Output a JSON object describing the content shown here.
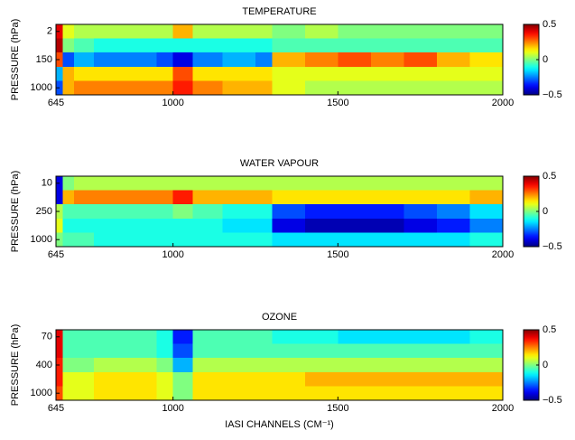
{
  "chart_data": [
    {
      "type": "heatmap",
      "title": "TEMPERATURE",
      "ylabel": "PRESSURE (hPa)",
      "colormap": "jet",
      "bins": [
        645,
        665,
        700,
        760,
        850,
        950,
        1000,
        1060,
        1150,
        1250,
        1300,
        1400,
        1500,
        1600,
        1700,
        1800,
        1900,
        2000
      ],
      "xlim": [
        645,
        2000
      ],
      "xticks": [
        645,
        1000,
        1500,
        2000
      ],
      "y_categories": [
        "2",
        null,
        "150",
        null,
        "1000"
      ],
      "clim": [
        -0.5,
        0.5
      ],
      "cticks": [
        {
          "value": -0.5,
          "label": "−0.5"
        },
        0,
        0.5
      ],
      "values": [
        [
          0.4,
          0.1,
          0.05,
          0.05,
          0.05,
          0.05,
          0.2,
          0.05,
          0.05,
          0.05,
          0.0,
          0.05,
          0.0,
          0.0,
          0.0,
          0.0,
          0.0
        ],
        [
          0.45,
          0.0,
          -0.05,
          -0.1,
          -0.1,
          -0.1,
          -0.1,
          -0.1,
          -0.1,
          -0.1,
          -0.05,
          -0.05,
          -0.05,
          -0.05,
          -0.05,
          -0.05,
          -0.05
        ],
        [
          0.3,
          -0.3,
          -0.2,
          -0.25,
          -0.25,
          -0.3,
          -0.4,
          -0.25,
          -0.2,
          -0.25,
          0.2,
          0.25,
          0.3,
          0.25,
          0.3,
          0.2,
          0.15
        ],
        [
          -0.2,
          0.2,
          0.15,
          0.15,
          0.15,
          0.15,
          0.3,
          0.15,
          0.15,
          0.15,
          0.1,
          0.1,
          0.1,
          0.1,
          0.1,
          0.1,
          0.1
        ],
        [
          -0.3,
          0.2,
          0.25,
          0.25,
          0.25,
          0.25,
          0.35,
          0.25,
          0.2,
          0.2,
          0.1,
          0.05,
          0.05,
          0.05,
          0.05,
          0.05,
          0.05
        ]
      ]
    },
    {
      "type": "heatmap",
      "title": "WATER VAPOUR",
      "ylabel": "PRESSURE (hPa)",
      "colormap": "jet",
      "bins": [
        645,
        665,
        700,
        760,
        850,
        950,
        1000,
        1060,
        1150,
        1250,
        1300,
        1400,
        1500,
        1600,
        1700,
        1800,
        1900,
        2000
      ],
      "xlim": [
        645,
        2000
      ],
      "xticks": [
        645,
        1000,
        1500,
        2000
      ],
      "y_categories": [
        "10",
        null,
        "250",
        null,
        "1000"
      ],
      "clim": [
        -0.5,
        0.5
      ],
      "cticks": [
        {
          "value": -0.5,
          "label": "−0.5"
        },
        0,
        0.5
      ],
      "values": [
        [
          -0.4,
          0.0,
          0.05,
          0.05,
          0.05,
          0.05,
          0.05,
          0.05,
          0.05,
          0.05,
          0.05,
          0.05,
          0.05,
          0.05,
          0.05,
          0.05,
          0.05
        ],
        [
          -0.4,
          0.2,
          0.25,
          0.25,
          0.25,
          0.25,
          0.35,
          0.2,
          0.2,
          0.2,
          0.15,
          0.15,
          0.15,
          0.15,
          0.15,
          0.15,
          0.2
        ],
        [
          0.05,
          -0.05,
          -0.05,
          -0.05,
          -0.05,
          -0.05,
          0.0,
          -0.05,
          -0.1,
          -0.1,
          -0.3,
          -0.35,
          -0.35,
          -0.35,
          -0.3,
          -0.25,
          -0.15
        ],
        [
          0.1,
          -0.1,
          -0.1,
          -0.1,
          -0.1,
          -0.1,
          -0.1,
          -0.1,
          -0.15,
          -0.15,
          -0.4,
          -0.45,
          -0.45,
          -0.45,
          -0.4,
          -0.35,
          -0.25
        ],
        [
          0.0,
          -0.05,
          -0.05,
          -0.1,
          -0.1,
          -0.1,
          -0.1,
          -0.1,
          -0.1,
          -0.1,
          -0.15,
          -0.15,
          -0.15,
          -0.15,
          -0.15,
          -0.15,
          -0.1
        ]
      ]
    },
    {
      "type": "heatmap",
      "title": "OZONE",
      "ylabel": "PRESSURE (hPa)",
      "xlabel": "IASI CHANNELS (CM⁻¹)",
      "colormap": "jet",
      "bins": [
        645,
        665,
        700,
        760,
        850,
        950,
        1000,
        1060,
        1150,
        1250,
        1300,
        1400,
        1500,
        1600,
        1700,
        1800,
        1900,
        2000
      ],
      "xlim": [
        645,
        2000
      ],
      "xticks": [
        645,
        1000,
        1500,
        2000
      ],
      "y_categories": [
        "70",
        null,
        "400",
        null,
        "1000"
      ],
      "clim": [
        -0.5,
        0.5
      ],
      "cticks": [
        {
          "value": -0.5,
          "label": "−0.5"
        },
        0,
        0.5
      ],
      "values": [
        [
          0.4,
          -0.05,
          -0.05,
          -0.05,
          -0.05,
          -0.1,
          -0.35,
          -0.05,
          -0.05,
          -0.05,
          -0.1,
          -0.1,
          -0.15,
          -0.15,
          -0.15,
          -0.15,
          -0.1
        ],
        [
          0.4,
          -0.05,
          -0.05,
          -0.05,
          -0.05,
          -0.1,
          -0.3,
          -0.05,
          -0.05,
          -0.05,
          -0.05,
          -0.05,
          -0.05,
          -0.05,
          -0.05,
          -0.05,
          -0.05
        ],
        [
          0.35,
          0.0,
          0.0,
          0.05,
          0.05,
          0.0,
          -0.2,
          0.05,
          0.05,
          0.05,
          0.05,
          0.05,
          0.05,
          0.05,
          0.05,
          0.05,
          0.05
        ],
        [
          0.35,
          0.1,
          0.1,
          0.15,
          0.15,
          0.1,
          0.0,
          0.15,
          0.15,
          0.15,
          0.15,
          0.2,
          0.2,
          0.2,
          0.2,
          0.2,
          0.2
        ],
        [
          0.3,
          0.1,
          0.1,
          0.15,
          0.15,
          0.1,
          0.0,
          0.15,
          0.15,
          0.15,
          0.15,
          0.15,
          0.15,
          0.15,
          0.15,
          0.15,
          0.15
        ]
      ]
    }
  ]
}
